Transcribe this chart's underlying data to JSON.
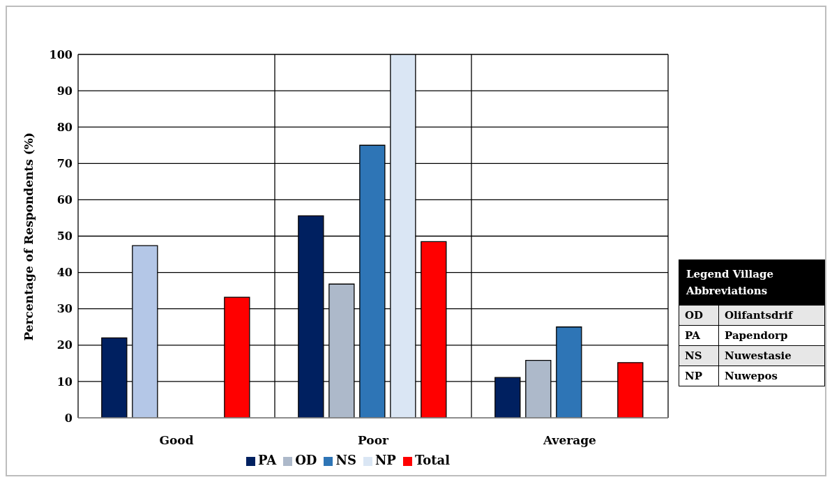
{
  "chart_data": {
    "type": "bar",
    "ylabel": "Percentage of Respondents (%)",
    "categories": [
      "Good",
      "Poor",
      "Average"
    ],
    "series": [
      {
        "name": "PA",
        "color": "#002060",
        "values": [
          22,
          55.6,
          11.1
        ]
      },
      {
        "name": "OD",
        "color": "#adb9ca",
        "colors": [
          "#b4c7e7",
          "#adb9ca",
          "#adb9ca"
        ],
        "values": [
          47.4,
          36.8,
          15.8
        ]
      },
      {
        "name": "NS",
        "color": "#2e75b6",
        "values": [
          null,
          75,
          25
        ]
      },
      {
        "name": "NP",
        "color": "#dae6f4",
        "values": [
          null,
          100,
          null
        ]
      },
      {
        "name": "Total",
        "color": "#ff0000",
        "values": [
          33.2,
          48.5,
          15.2
        ]
      }
    ],
    "ylim": [
      0,
      100
    ],
    "yticks": [
      0,
      10,
      20,
      30,
      40,
      50,
      60,
      70,
      80,
      90,
      100
    ],
    "grid": true,
    "legend": "bottom",
    "annotations": [
      "Legend Village Abbreviations",
      "OD",
      "Olifantsdrif",
      "PA",
      "Papendorp",
      "NS",
      "Nuwestasie",
      "NP",
      "Nuwepos"
    ]
  }
}
